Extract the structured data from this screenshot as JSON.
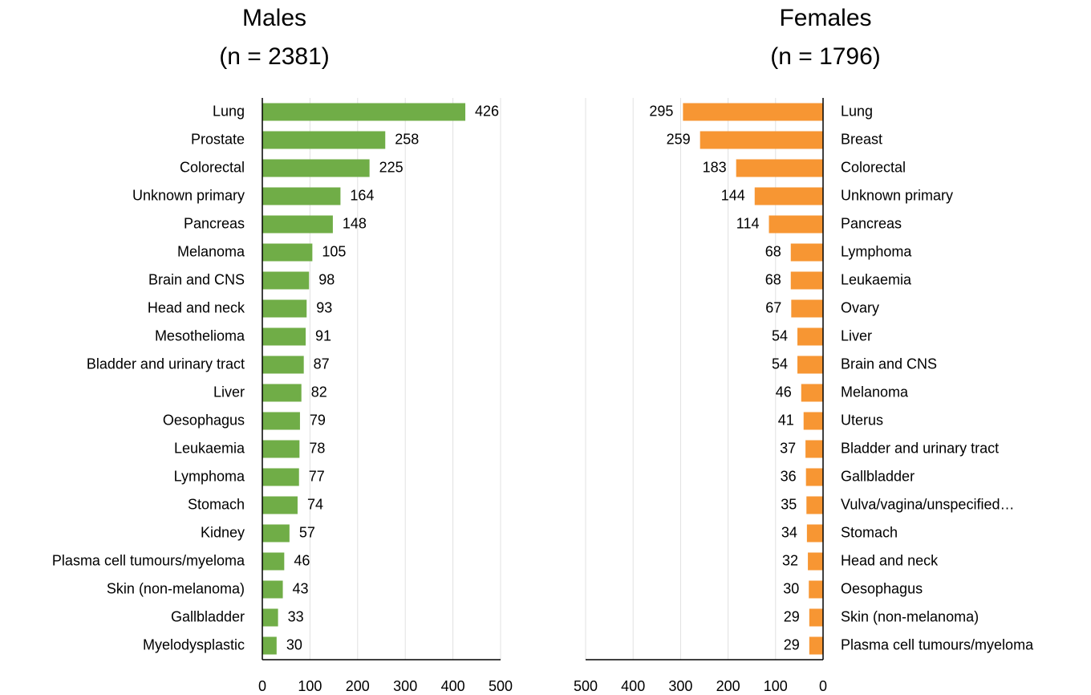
{
  "chart_data": [
    {
      "type": "bar",
      "orientation": "horizontal",
      "title": "Males",
      "subtitle": "(n = 2381)",
      "categories": [
        "Lung",
        "Prostate",
        "Colorectal",
        "Unknown primary",
        "Pancreas",
        "Melanoma",
        "Brain and CNS",
        "Head and neck",
        "Mesothelioma",
        "Bladder and urinary tract",
        "Liver",
        "Oesophagus",
        "Leukaemia",
        "Lymphoma",
        "Stomach",
        "Kidney",
        "Plasma cell tumours/myeloma",
        "Skin (non-melanoma)",
        "Gallbladder",
        "Myelodysplastic"
      ],
      "values": [
        426,
        258,
        225,
        164,
        148,
        105,
        98,
        93,
        91,
        87,
        82,
        79,
        78,
        77,
        74,
        57,
        46,
        43,
        33,
        30
      ],
      "color": "#70ad47",
      "xlim": [
        0,
        500
      ],
      "xticks": [
        0,
        100,
        200,
        300,
        400,
        500
      ],
      "x_reversed": false,
      "grid": true
    },
    {
      "type": "bar",
      "orientation": "horizontal",
      "title": "Females",
      "subtitle": "(n = 1796)",
      "categories": [
        "Lung",
        "Breast",
        "Colorectal",
        "Unknown primary",
        "Pancreas",
        "Lymphoma",
        "Leukaemia",
        "Ovary",
        "Liver",
        "Brain and CNS",
        "Melanoma",
        "Uterus",
        "Bladder and urinary tract",
        "Gallbladder",
        "Vulva/vagina/unspecified…",
        "Stomach",
        "Head and neck",
        "Oesophagus",
        "Skin (non-melanoma)",
        "Plasma cell tumours/myeloma"
      ],
      "values": [
        295,
        259,
        183,
        144,
        114,
        68,
        68,
        67,
        54,
        54,
        46,
        41,
        37,
        36,
        35,
        34,
        32,
        30,
        29,
        29
      ],
      "color": "#f79633",
      "xlim": [
        0,
        500
      ],
      "xticks": [
        0,
        100,
        200,
        300,
        400,
        500
      ],
      "x_reversed": true,
      "grid": true
    }
  ]
}
